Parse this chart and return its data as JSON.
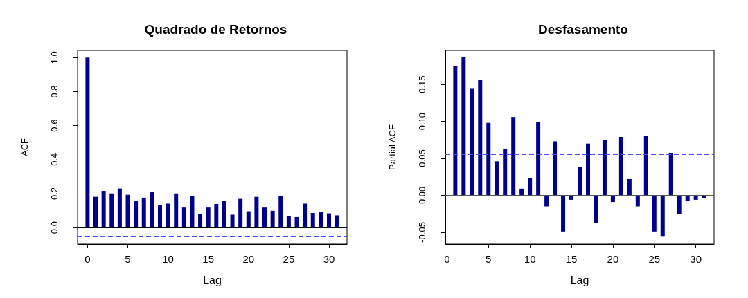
{
  "chart_data": [
    {
      "type": "bar",
      "title": "Quadrado de Retornos",
      "xlabel": "Lag",
      "ylabel": "ACF",
      "color": "#00008b",
      "x": [
        0,
        1,
        2,
        3,
        4,
        5,
        6,
        7,
        8,
        9,
        10,
        11,
        12,
        13,
        14,
        15,
        16,
        17,
        18,
        19,
        20,
        21,
        22,
        23,
        24,
        25,
        26,
        27,
        28,
        29,
        30,
        31
      ],
      "values": [
        1.0,
        0.181,
        0.216,
        0.201,
        0.23,
        0.193,
        0.157,
        0.176,
        0.211,
        0.132,
        0.141,
        0.201,
        0.118,
        0.184,
        0.078,
        0.118,
        0.139,
        0.159,
        0.076,
        0.169,
        0.096,
        0.181,
        0.118,
        0.099,
        0.188,
        0.069,
        0.062,
        0.141,
        0.086,
        0.091,
        0.084,
        0.072
      ],
      "xlim": [
        -1.24,
        32.24
      ],
      "xticks": [
        0,
        5,
        10,
        15,
        20,
        25,
        30
      ],
      "ylim": [
        -0.097,
        1.042
      ],
      "yticks": [
        {
          "value": 0,
          "label": "0.0"
        },
        0.2,
        0.4,
        0.6,
        0.8,
        {
          "value": 1,
          "label": "1.0"
        }
      ],
      "ref_lines": [
        {
          "axis": "y",
          "value": 0,
          "color": "#000000",
          "line_style": "solid"
        },
        {
          "axis": "y",
          "value": 0.055,
          "color": "#4d4dff",
          "line_style": "dashed"
        },
        {
          "axis": "y",
          "value": -0.055,
          "color": "#4d4dff",
          "line_style": "dashed"
        }
      ]
    },
    {
      "type": "bar",
      "title": "Desfasamento",
      "xlabel": "Lag",
      "ylabel": "Partial ACF",
      "color": "#00008b",
      "x": [
        1,
        2,
        3,
        4,
        5,
        6,
        7,
        8,
        9,
        10,
        11,
        12,
        13,
        14,
        15,
        16,
        17,
        18,
        19,
        20,
        21,
        22,
        23,
        24,
        25,
        26,
        27,
        28,
        29,
        30,
        31
      ],
      "values": [
        0.175,
        0.187,
        0.145,
        0.156,
        0.098,
        0.046,
        0.063,
        0.106,
        0.009,
        0.023,
        0.099,
        -0.015,
        0.073,
        -0.049,
        -0.006,
        0.038,
        0.07,
        -0.037,
        0.075,
        -0.009,
        0.079,
        0.022,
        -0.015,
        0.08,
        -0.049,
        -0.056,
        0.057,
        -0.025,
        -0.008,
        -0.006,
        -0.004
      ],
      "xlim": [
        -0.2,
        32.2
      ],
      "xticks": [
        0,
        5,
        10,
        15,
        20,
        25,
        30
      ],
      "ylim": [
        -0.066,
        0.196
      ],
      "yticks": [
        -0.05,
        {
          "value": 0,
          "label": "0.00"
        },
        0.05,
        {
          "value": 0.1,
          "label": "0.10"
        },
        0.15
      ],
      "ref_lines": [
        {
          "axis": "y",
          "value": 0,
          "color": "#555555",
          "line_style": "solid"
        },
        {
          "axis": "y",
          "value": 0.055,
          "color": "#4d4dff",
          "line_style": "dashed"
        },
        {
          "axis": "y",
          "value": -0.055,
          "color": "#4d4dff",
          "line_style": "dashed"
        }
      ]
    }
  ]
}
